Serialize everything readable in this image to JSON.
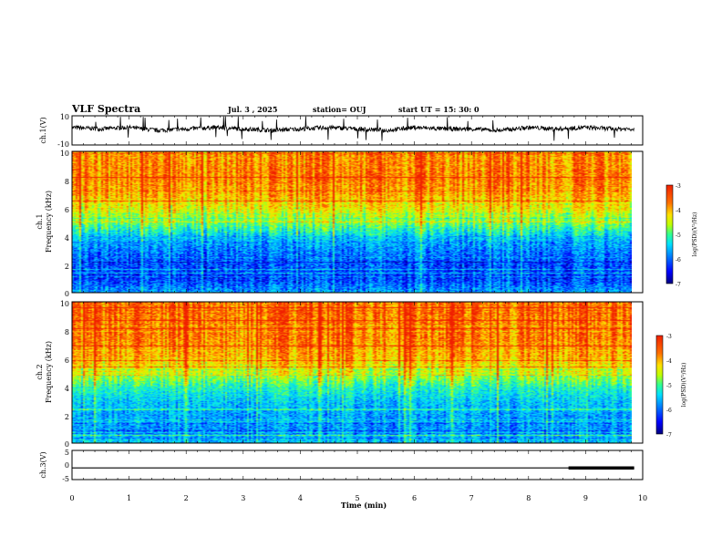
{
  "header": {
    "title": "VLF Spectra",
    "date": "Jul. 3 , 2025",
    "station": "station= OUJ",
    "start": "start UT = 15: 30: 0"
  },
  "colors": {
    "spectrum": [
      "#00007f",
      "#0000ff",
      "#0080ff",
      "#00e0ff",
      "#30ff90",
      "#c0ff00",
      "#ffe000",
      "#ff7000",
      "#f02000"
    ],
    "trace": "#000000"
  },
  "chart_data": [
    {
      "type": "line",
      "panel": "ch1-waveform",
      "ylabel": "ch.1(V)",
      "ylim": [
        -10,
        10
      ],
      "ytick_labels": [
        "10",
        "-10"
      ],
      "xlim": [
        0,
        10
      ],
      "series": [
        {
          "x": [
            0,
            0.5,
            1,
            1.5,
            2,
            2.5,
            3,
            3.5,
            4,
            4.5,
            5,
            5.5,
            6,
            6.5,
            7,
            7.5,
            8,
            8.5,
            9,
            9.5,
            9.85
          ],
          "y": [
            2,
            1,
            2,
            0,
            1,
            2,
            1,
            0,
            1,
            2,
            1,
            0,
            2,
            1,
            1,
            0,
            2,
            1,
            2,
            1,
            1
          ]
        }
      ]
    },
    {
      "type": "heatmap",
      "panel": "ch1-spectrogram",
      "ylabel": "ch.1\nFrequency (kHz)",
      "ylim": [
        0,
        10
      ],
      "ytick_labels": [
        "0",
        "2",
        "4",
        "6",
        "8",
        "10"
      ],
      "xlim": [
        0,
        9.85
      ],
      "colorbar": {
        "label": "log(PSD)(V²/Hz)",
        "range": [
          -7,
          -3
        ],
        "tick_labels": [
          "-3",
          "-4",
          "-5",
          "-6",
          "-7"
        ]
      },
      "profile": {
        "freq_khz": [
          0,
          1,
          2,
          3,
          4,
          5,
          6,
          7,
          8,
          9,
          10
        ],
        "log_psd": [
          -5.8,
          -6.3,
          -6.2,
          -6.0,
          -5.6,
          -4.8,
          -4.2,
          -3.8,
          -3.6,
          -3.6,
          -3.7
        ]
      }
    },
    {
      "type": "heatmap",
      "panel": "ch2-spectrogram",
      "ylabel": "ch.2\nFrequency (kHz)",
      "ylim": [
        0,
        10
      ],
      "ytick_labels": [
        "0",
        "2",
        "4",
        "6",
        "8",
        "10"
      ],
      "xlim": [
        0,
        9.85
      ],
      "colorbar": {
        "label": "log(PSD)(V²/Hz)",
        "range": [
          -7,
          -3
        ],
        "tick_labels": [
          "-3",
          "-4",
          "-5",
          "-6",
          "-7"
        ]
      },
      "profile": {
        "freq_khz": [
          0,
          1,
          2,
          3,
          4,
          5,
          6,
          7,
          8,
          9,
          10
        ],
        "log_psd": [
          -5.6,
          -5.9,
          -5.8,
          -5.6,
          -5.2,
          -4.4,
          -3.9,
          -3.6,
          -3.5,
          -3.5,
          -3.5
        ]
      }
    },
    {
      "type": "line",
      "panel": "ch3-waveform",
      "ylabel": "ch.3(V)",
      "ylim": [
        -5,
        5
      ],
      "ytick_labels": [
        "5",
        "0",
        "-5"
      ],
      "xlim": [
        0,
        10
      ],
      "series": [
        {
          "x": [
            0,
            8.7
          ],
          "y": [
            -1,
            -1
          ]
        },
        {
          "x": [
            8.7,
            9.85
          ],
          "y": [
            -1,
            -1
          ],
          "thick": true
        }
      ]
    }
  ],
  "xaxis": {
    "label": "Time (min)",
    "ticks": [
      "0",
      "1",
      "2",
      "3",
      "4",
      "5",
      "6",
      "7",
      "8",
      "9",
      "10"
    ]
  }
}
